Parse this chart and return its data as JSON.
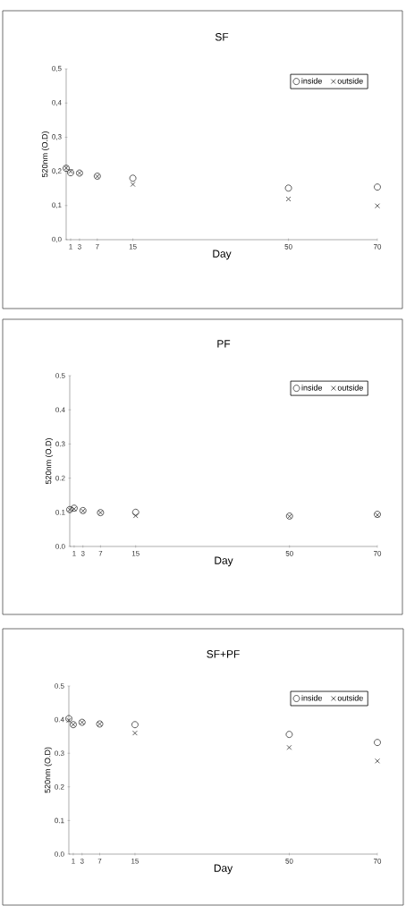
{
  "chart_data": [
    {
      "type": "scatter",
      "title": "SF",
      "xlabel": "Day",
      "ylabel": "520nm (O.D)",
      "legend": "top right",
      "grid": false,
      "x": [
        0,
        1,
        3,
        7,
        15,
        50,
        70
      ],
      "xlim": [
        0,
        70
      ],
      "ylim": [
        0,
        0.5
      ],
      "xticks": [
        1,
        3,
        7,
        15,
        50,
        70
      ],
      "yticks": [
        {
          "value": 0,
          "label": "0,0"
        },
        {
          "value": 0.1,
          "label": "0,1"
        },
        {
          "value": 0.2,
          "label": "0,2"
        },
        {
          "value": 0.3,
          "label": "0,3"
        },
        {
          "value": 0.4,
          "label": "0,4"
        },
        {
          "value": 0.5,
          "label": "0,5"
        }
      ],
      "series": [
        {
          "name": "inside",
          "color": "#333333",
          "marker": "circle",
          "values": [
            0.209,
            0.196,
            0.195,
            0.186,
            0.18,
            0.151,
            0.154
          ]
        },
        {
          "name": "outside",
          "color": "#333333",
          "marker": "cross",
          "values": [
            0.21,
            0.2,
            0.195,
            0.185,
            0.162,
            0.119,
            0.099
          ]
        }
      ]
    },
    {
      "type": "scatter",
      "title": "PF",
      "xlabel": "Day",
      "ylabel": "520nm (O.D)",
      "legend": "top right",
      "grid": false,
      "x": [
        0,
        1,
        3,
        7,
        15,
        50,
        70
      ],
      "xlim": [
        0,
        70
      ],
      "ylim": [
        0,
        0.5
      ],
      "xticks": [
        1,
        3,
        7,
        15,
        50,
        70
      ],
      "yticks": [
        {
          "value": 0,
          "label": "0.0"
        },
        {
          "value": 0.1,
          "label": "0.1"
        },
        {
          "value": 0.2,
          "label": "0.2"
        },
        {
          "value": 0.3,
          "label": "0.3"
        },
        {
          "value": 0.4,
          "label": "0.4"
        },
        {
          "value": 0.5,
          "label": "0.5"
        }
      ],
      "series": [
        {
          "name": "inside",
          "color": "#333333",
          "marker": "circle",
          "values": [
            0.108,
            0.112,
            0.105,
            0.099,
            0.1,
            0.089,
            0.094
          ]
        },
        {
          "name": "outside",
          "color": "#333333",
          "marker": "cross",
          "values": [
            0.108,
            0.11,
            0.104,
            0.099,
            0.09,
            0.088,
            0.092
          ]
        }
      ]
    },
    {
      "type": "scatter",
      "title": "SF+PF",
      "xlabel": "Day",
      "ylabel": "520nm (O.D)",
      "legend": "top right",
      "grid": false,
      "x": [
        0,
        1,
        3,
        7,
        15,
        50,
        70
      ],
      "xlim": [
        0,
        70
      ],
      "ylim": [
        0,
        0.5
      ],
      "xticks": [
        1,
        3,
        7,
        15,
        50,
        70
      ],
      "yticks": [
        {
          "value": 0,
          "label": "0.0"
        },
        {
          "value": 0.1,
          "label": "0.1"
        },
        {
          "value": 0.2,
          "label": "0.2"
        },
        {
          "value": 0.3,
          "label": "0.3"
        },
        {
          "value": 0.4,
          "label": "0.4"
        },
        {
          "value": 0.5,
          "label": "0.5"
        }
      ],
      "series": [
        {
          "name": "inside",
          "color": "#333333",
          "marker": "circle",
          "values": [
            0.403,
            0.385,
            0.392,
            0.387,
            0.385,
            0.356,
            0.332
          ]
        },
        {
          "name": "outside",
          "color": "#333333",
          "marker": "cross",
          "values": [
            0.398,
            0.385,
            0.392,
            0.387,
            0.36,
            0.317,
            0.277
          ]
        }
      ]
    }
  ]
}
